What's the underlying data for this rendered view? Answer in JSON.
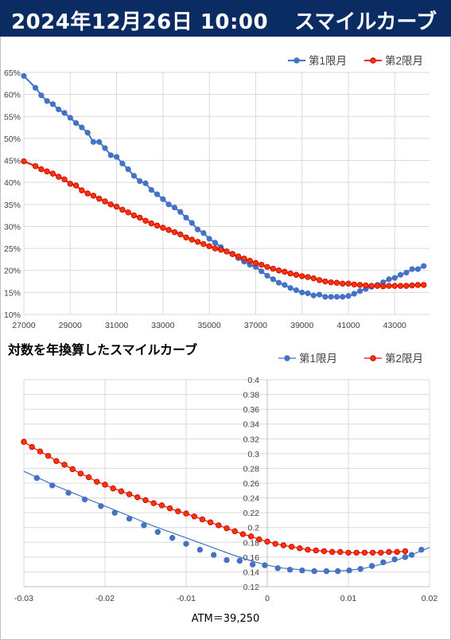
{
  "header": {
    "datetime": "2024年12月26日 10:00",
    "title": "スマイルカーブ"
  },
  "chart2_title": "対数を年換算したスマイルカーブ",
  "atm_label": "ATM＝39,250",
  "colors": {
    "series1": "#4472c4",
    "series2": "#ff0000",
    "header_bg": "#0b2b63"
  },
  "chart_data": [
    {
      "type": "line",
      "title": "",
      "xlabel": "",
      "ylabel": "",
      "xlim": [
        27000,
        44500
      ],
      "ylim": [
        0.1,
        0.65
      ],
      "x_ticks": [
        "27000",
        "29000",
        "31000",
        "33000",
        "35000",
        "37000",
        "39000",
        "41000",
        "43000"
      ],
      "y_ticks": [
        "10%",
        "15%",
        "20%",
        "25%",
        "30%",
        "35%",
        "40%",
        "45%",
        "50%",
        "55%",
        "60%",
        "65%"
      ],
      "legend": "top-right",
      "series": [
        {
          "name": "第1限月",
          "points": [
            [
              27000,
              0.642
            ],
            [
              27500,
              0.615
            ],
            [
              27750,
              0.598
            ],
            [
              28000,
              0.585
            ],
            [
              28250,
              0.578
            ],
            [
              28500,
              0.566
            ],
            [
              28750,
              0.558
            ],
            [
              29000,
              0.547
            ],
            [
              29250,
              0.535
            ],
            [
              29500,
              0.525
            ],
            [
              29750,
              0.513
            ],
            [
              30000,
              0.492
            ],
            [
              30250,
              0.492
            ],
            [
              30500,
              0.478
            ],
            [
              30750,
              0.462
            ],
            [
              31000,
              0.458
            ],
            [
              31250,
              0.443
            ],
            [
              31500,
              0.43
            ],
            [
              31750,
              0.415
            ],
            [
              32000,
              0.403
            ],
            [
              32250,
              0.398
            ],
            [
              32500,
              0.383
            ],
            [
              32750,
              0.373
            ],
            [
              33000,
              0.362
            ],
            [
              33250,
              0.35
            ],
            [
              33500,
              0.343
            ],
            [
              33750,
              0.333
            ],
            [
              34000,
              0.32
            ],
            [
              34250,
              0.308
            ],
            [
              34500,
              0.293
            ],
            [
              34750,
              0.285
            ],
            [
              35000,
              0.272
            ],
            [
              35250,
              0.263
            ],
            [
              35500,
              0.253
            ],
            [
              35750,
              0.243
            ],
            [
              36000,
              0.238
            ],
            [
              36250,
              0.228
            ],
            [
              36500,
              0.22
            ],
            [
              36750,
              0.213
            ],
            [
              37000,
              0.208
            ],
            [
              37250,
              0.198
            ],
            [
              37500,
              0.188
            ],
            [
              37750,
              0.18
            ],
            [
              38000,
              0.172
            ],
            [
              38250,
              0.167
            ],
            [
              38500,
              0.16
            ],
            [
              38750,
              0.155
            ],
            [
              39000,
              0.15
            ],
            [
              39250,
              0.148
            ],
            [
              39500,
              0.143
            ],
            [
              39750,
              0.145
            ],
            [
              40000,
              0.14
            ],
            [
              40250,
              0.14
            ],
            [
              40500,
              0.14
            ],
            [
              40750,
              0.14
            ],
            [
              41000,
              0.142
            ],
            [
              41250,
              0.147
            ],
            [
              41500,
              0.153
            ],
            [
              41750,
              0.158
            ],
            [
              42000,
              0.163
            ],
            [
              42250,
              0.167
            ],
            [
              42500,
              0.173
            ],
            [
              42750,
              0.18
            ],
            [
              43000,
              0.183
            ],
            [
              43250,
              0.19
            ],
            [
              43500,
              0.195
            ],
            [
              43750,
              0.203
            ],
            [
              44000,
              0.203
            ],
            [
              44250,
              0.21
            ]
          ]
        },
        {
          "name": "第2限月",
          "points": [
            [
              27000,
              0.448
            ],
            [
              27500,
              0.437
            ],
            [
              27750,
              0.43
            ],
            [
              28000,
              0.425
            ],
            [
              28250,
              0.42
            ],
            [
              28500,
              0.413
            ],
            [
              28750,
              0.407
            ],
            [
              29000,
              0.397
            ],
            [
              29250,
              0.393
            ],
            [
              29500,
              0.382
            ],
            [
              29750,
              0.375
            ],
            [
              30000,
              0.37
            ],
            [
              30250,
              0.363
            ],
            [
              30500,
              0.357
            ],
            [
              30750,
              0.35
            ],
            [
              31000,
              0.345
            ],
            [
              31250,
              0.338
            ],
            [
              31500,
              0.332
            ],
            [
              31750,
              0.325
            ],
            [
              32000,
              0.32
            ],
            [
              32250,
              0.313
            ],
            [
              32500,
              0.307
            ],
            [
              32750,
              0.302
            ],
            [
              33000,
              0.297
            ],
            [
              33250,
              0.292
            ],
            [
              33500,
              0.287
            ],
            [
              33750,
              0.282
            ],
            [
              34000,
              0.275
            ],
            [
              34250,
              0.27
            ],
            [
              34500,
              0.265
            ],
            [
              34750,
              0.26
            ],
            [
              35000,
              0.255
            ],
            [
              35250,
              0.25
            ],
            [
              35500,
              0.247
            ],
            [
              35750,
              0.243
            ],
            [
              36000,
              0.237
            ],
            [
              36250,
              0.232
            ],
            [
              36500,
              0.227
            ],
            [
              36750,
              0.222
            ],
            [
              37000,
              0.217
            ],
            [
              37250,
              0.213
            ],
            [
              37500,
              0.208
            ],
            [
              37750,
              0.204
            ],
            [
              38000,
              0.2
            ],
            [
              38250,
              0.197
            ],
            [
              38500,
              0.193
            ],
            [
              38750,
              0.19
            ],
            [
              39000,
              0.187
            ],
            [
              39250,
              0.185
            ],
            [
              39500,
              0.182
            ],
            [
              39750,
              0.178
            ],
            [
              40000,
              0.175
            ],
            [
              40250,
              0.173
            ],
            [
              40500,
              0.172
            ],
            [
              40750,
              0.17
            ],
            [
              41000,
              0.17
            ],
            [
              41250,
              0.168
            ],
            [
              41500,
              0.167
            ],
            [
              41750,
              0.166
            ],
            [
              42000,
              0.165
            ],
            [
              42250,
              0.165
            ],
            [
              42500,
              0.164
            ],
            [
              42750,
              0.165
            ],
            [
              43000,
              0.165
            ],
            [
              43250,
              0.165
            ],
            [
              43500,
              0.165
            ],
            [
              43750,
              0.166
            ],
            [
              44000,
              0.167
            ],
            [
              44250,
              0.167
            ]
          ]
        }
      ]
    },
    {
      "type": "line",
      "title": "対数を年換算したスマイルカーブ",
      "xlabel": "ATM＝39,250",
      "ylabel": "",
      "xlim": [
        -0.03,
        0.02
      ],
      "ylim": [
        0.12,
        0.4
      ],
      "x_ticks": [
        "-0.03",
        "-0.02",
        "-0.01",
        "0",
        "0.01",
        "0.02"
      ],
      "y_ticks": [
        "0.12",
        "0.14",
        "0.16",
        "0.18",
        "0.2",
        "0.22",
        "0.24",
        "0.26",
        "0.28",
        "0.3",
        "0.32",
        "0.34",
        "0.36",
        "0.38",
        "0.4"
      ],
      "legend": "top-right",
      "series": [
        {
          "name": "第1限月",
          "line": [
            [
              -0.03,
              0.276
            ],
            [
              -0.028,
              0.266
            ],
            [
              -0.026,
              0.256
            ],
            [
              -0.024,
              0.247
            ],
            [
              -0.022,
              0.238
            ],
            [
              -0.02,
              0.229
            ],
            [
              -0.018,
              0.22
            ],
            [
              -0.016,
              0.211
            ],
            [
              -0.014,
              0.202
            ],
            [
              -0.012,
              0.194
            ],
            [
              -0.01,
              0.186
            ],
            [
              -0.008,
              0.178
            ],
            [
              -0.006,
              0.17
            ],
            [
              -0.004,
              0.162
            ],
            [
              -0.002,
              0.155
            ],
            [
              0.0,
              0.149
            ],
            [
              0.002,
              0.145
            ],
            [
              0.004,
              0.143
            ],
            [
              0.006,
              0.141
            ],
            [
              0.008,
              0.141
            ],
            [
              0.01,
              0.142
            ],
            [
              0.012,
              0.145
            ],
            [
              0.014,
              0.15
            ],
            [
              0.016,
              0.156
            ],
            [
              0.018,
              0.164
            ],
            [
              0.02,
              0.173
            ]
          ],
          "markers": [
            [
              -0.0284,
              0.267
            ],
            [
              -0.0265,
              0.257
            ],
            [
              -0.0245,
              0.247
            ],
            [
              -0.0225,
              0.238
            ],
            [
              -0.0205,
              0.229
            ],
            [
              -0.0188,
              0.22
            ],
            [
              -0.017,
              0.212
            ],
            [
              -0.0152,
              0.203
            ],
            [
              -0.0135,
              0.194
            ],
            [
              -0.0117,
              0.186
            ],
            [
              -0.01,
              0.178
            ],
            [
              -0.0083,
              0.17
            ],
            [
              -0.0066,
              0.163
            ],
            [
              -0.005,
              0.156
            ],
            [
              -0.0034,
              0.155
            ],
            [
              -0.0018,
              0.15
            ],
            [
              -0.0003,
              0.149
            ],
            [
              0.0013,
              0.145
            ],
            [
              0.0028,
              0.143
            ],
            [
              0.0043,
              0.142
            ],
            [
              0.0058,
              0.141
            ],
            [
              0.0073,
              0.141
            ],
            [
              0.0087,
              0.141
            ],
            [
              0.0101,
              0.142
            ],
            [
              0.0115,
              0.144
            ],
            [
              0.0129,
              0.148
            ],
            [
              0.0143,
              0.153
            ],
            [
              0.0157,
              0.157
            ],
            [
              0.017,
              0.16
            ],
            [
              0.0178,
              0.163
            ],
            [
              0.019,
              0.17
            ]
          ]
        },
        {
          "name": "第2限月",
          "points": [
            [
              -0.03,
              0.316
            ],
            [
              -0.029,
              0.309
            ],
            [
              -0.028,
              0.303
            ],
            [
              -0.027,
              0.297
            ],
            [
              -0.026,
              0.29
            ],
            [
              -0.025,
              0.285
            ],
            [
              -0.024,
              0.279
            ],
            [
              -0.023,
              0.273
            ],
            [
              -0.022,
              0.268
            ],
            [
              -0.021,
              0.262
            ],
            [
              -0.02,
              0.258
            ],
            [
              -0.019,
              0.253
            ],
            [
              -0.018,
              0.249
            ],
            [
              -0.017,
              0.245
            ],
            [
              -0.016,
              0.241
            ],
            [
              -0.015,
              0.237
            ],
            [
              -0.014,
              0.233
            ],
            [
              -0.013,
              0.23
            ],
            [
              -0.012,
              0.226
            ],
            [
              -0.011,
              0.222
            ],
            [
              -0.01,
              0.219
            ],
            [
              -0.009,
              0.215
            ],
            [
              -0.008,
              0.211
            ],
            [
              -0.007,
              0.207
            ],
            [
              -0.006,
              0.203
            ],
            [
              -0.005,
              0.199
            ],
            [
              -0.004,
              0.195
            ],
            [
              -0.003,
              0.191
            ],
            [
              -0.002,
              0.188
            ],
            [
              -0.001,
              0.184
            ],
            [
              0.0,
              0.181
            ],
            [
              0.001,
              0.178
            ],
            [
              0.002,
              0.176
            ],
            [
              0.003,
              0.174
            ],
            [
              0.004,
              0.172
            ],
            [
              0.005,
              0.17
            ],
            [
              0.006,
              0.169
            ],
            [
              0.007,
              0.168
            ],
            [
              0.008,
              0.167
            ],
            [
              0.009,
              0.167
            ],
            [
              0.01,
              0.166
            ],
            [
              0.011,
              0.166
            ],
            [
              0.012,
              0.166
            ],
            [
              0.013,
              0.166
            ],
            [
              0.014,
              0.166
            ],
            [
              0.015,
              0.167
            ],
            [
              0.016,
              0.167
            ],
            [
              0.017,
              0.168
            ]
          ]
        }
      ]
    }
  ]
}
